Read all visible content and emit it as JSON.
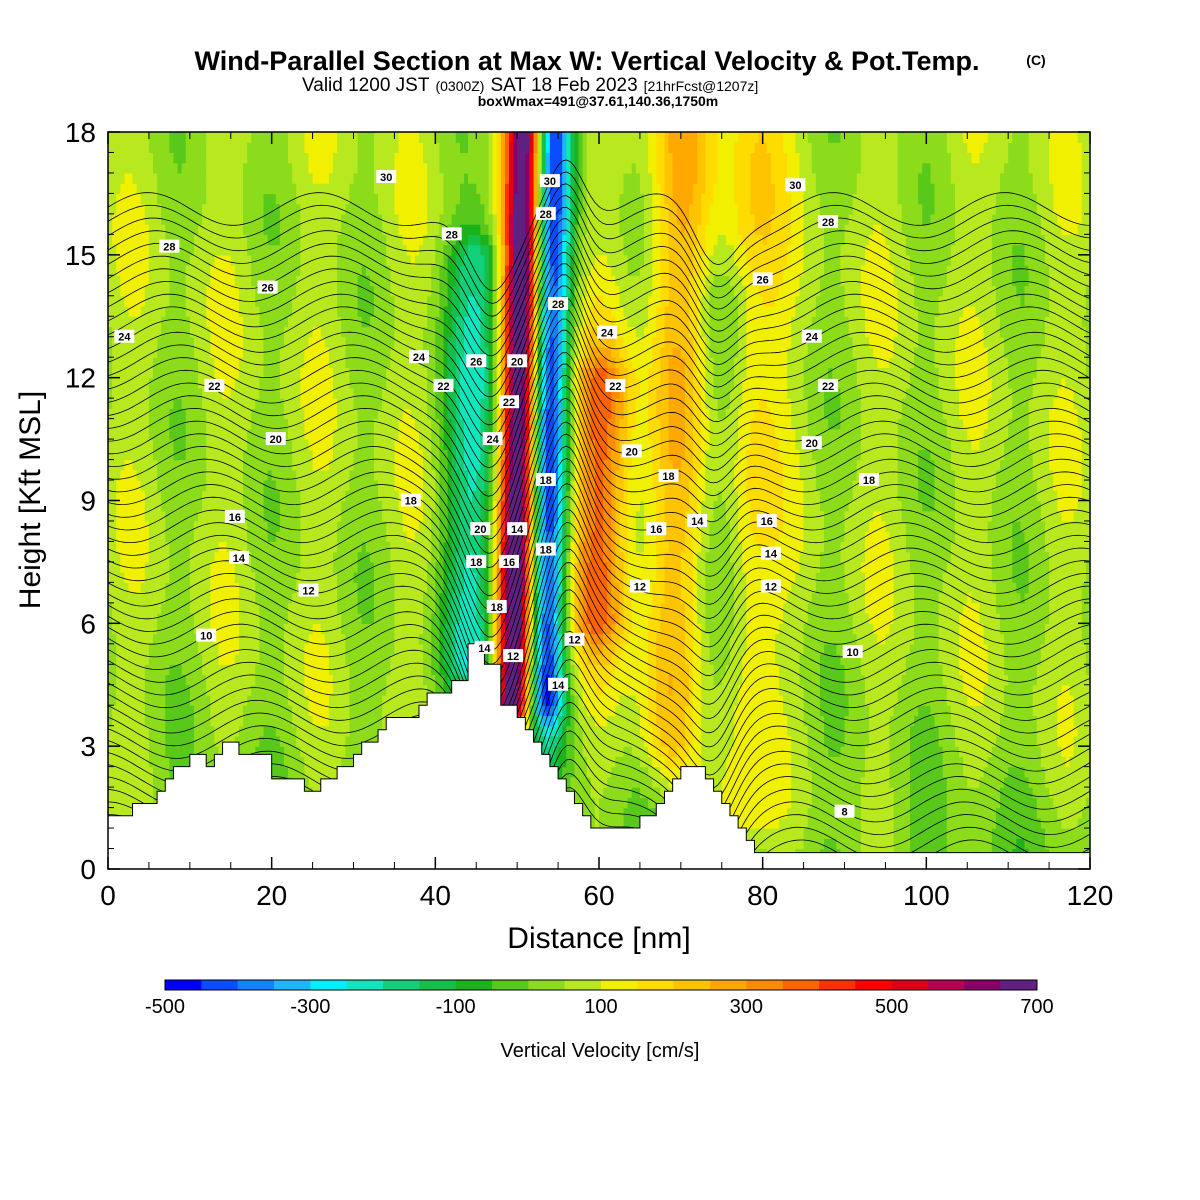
{
  "title": {
    "main": "Wind-Parallel Section at Max W: Vertical Velocity & Pot.Temp.",
    "copyright": "(C)",
    "valid_a": "Valid 1200 JST",
    "valid_b": "(0300Z)",
    "valid_c": "SAT 18 Feb 2023",
    "valid_d": "[21hrFcst@1207z]",
    "box": "boxWmax=491@37.61,140.36,1750m"
  },
  "chart_data": {
    "type": "heatmap",
    "xlabel": "Distance [nm]",
    "ylabel": "Height [Kft MSL]",
    "xlim": [
      0,
      120
    ],
    "ylim": [
      0,
      18
    ],
    "x_ticks": [
      0,
      20,
      40,
      60,
      80,
      100,
      120
    ],
    "y_ticks": [
      0,
      3,
      6,
      9,
      12,
      15,
      18
    ],
    "colorbar": {
      "label": "Vertical Velocity [cm/s]",
      "range": [
        -500,
        700
      ],
      "step": 50,
      "tick_labels": [
        "-500",
        "-300",
        "-100",
        "100",
        "300",
        "500",
        "700"
      ],
      "colors": [
        "#0000ff",
        "#0a4cff",
        "#1482ff",
        "#1cb7ff",
        "#00f0ff",
        "#10e6be",
        "#12d07a",
        "#14c04a",
        "#1cb21c",
        "#58c81a",
        "#8cdc1c",
        "#b8e81e",
        "#f0f000",
        "#ffdc00",
        "#ffc400",
        "#ffa800",
        "#ff8c00",
        "#ff6400",
        "#ff3000",
        "#ff0000",
        "#e00018",
        "#b80050",
        "#880068",
        "#602080"
      ]
    },
    "velocity_features": [
      {
        "x": 50,
        "ymin": 4.0,
        "ymax": 18,
        "w": 700,
        "note": "strong updraft"
      },
      {
        "x": 54,
        "ymin": 4.0,
        "ymax": 18,
        "w": -480,
        "note": "strong downdraft"
      },
      {
        "x": 45,
        "ymin": 5.0,
        "ymax": 15,
        "w": -260
      },
      {
        "x": 60,
        "ymin": 6.0,
        "ymax": 12,
        "w": 280
      },
      {
        "x": 69,
        "ymin": 3.0,
        "ymax": 18,
        "w": 180
      },
      {
        "x": 78,
        "ymin": 1.0,
        "ymax": 18,
        "w": 150
      },
      {
        "x": 75,
        "ymin": 3.0,
        "ymax": 14,
        "w": -100
      }
    ],
    "theta_contours": [
      8,
      10,
      12,
      14,
      16,
      18,
      20,
      22,
      24,
      26,
      28,
      30
    ],
    "theta_labels": [
      {
        "text": "30",
        "x": 34,
        "y": 16.9
      },
      {
        "text": "28",
        "x": 7.5,
        "y": 15.2
      },
      {
        "text": "26",
        "x": 19.5,
        "y": 14.2
      },
      {
        "text": "24",
        "x": 2,
        "y": 13.0
      },
      {
        "text": "22",
        "x": 13,
        "y": 11.8
      },
      {
        "text": "20",
        "x": 20.5,
        "y": 10.5
      },
      {
        "text": "18",
        "x": 37,
        "y": 9.0
      },
      {
        "text": "16",
        "x": 15.5,
        "y": 8.6
      },
      {
        "text": "14",
        "x": 16,
        "y": 7.6
      },
      {
        "text": "12",
        "x": 24.5,
        "y": 6.8
      },
      {
        "text": "10",
        "x": 12,
        "y": 5.7
      },
      {
        "text": "28",
        "x": 42,
        "y": 15.5
      },
      {
        "text": "24",
        "x": 38,
        "y": 12.5
      },
      {
        "text": "22",
        "x": 41,
        "y": 11.8
      },
      {
        "text": "26",
        "x": 45,
        "y": 12.4
      },
      {
        "text": "20",
        "x": 50,
        "y": 12.4
      },
      {
        "text": "22",
        "x": 49,
        "y": 11.4
      },
      {
        "text": "24",
        "x": 47,
        "y": 10.5
      },
      {
        "text": "20",
        "x": 45.5,
        "y": 8.3
      },
      {
        "text": "14",
        "x": 50,
        "y": 8.3
      },
      {
        "text": "18",
        "x": 45,
        "y": 7.5
      },
      {
        "text": "16",
        "x": 49,
        "y": 7.5
      },
      {
        "text": "18",
        "x": 47.5,
        "y": 6.4
      },
      {
        "text": "14",
        "x": 46,
        "y": 5.4
      },
      {
        "text": "12",
        "x": 49.5,
        "y": 5.2
      },
      {
        "text": "30",
        "x": 54,
        "y": 16.8
      },
      {
        "text": "28",
        "x": 53.5,
        "y": 16.0
      },
      {
        "text": "28",
        "x": 55,
        "y": 13.8
      },
      {
        "text": "18",
        "x": 53.5,
        "y": 9.5
      },
      {
        "text": "18",
        "x": 53.5,
        "y": 7.8
      },
      {
        "text": "14",
        "x": 55,
        "y": 4.5
      },
      {
        "text": "12",
        "x": 57,
        "y": 5.6
      },
      {
        "text": "24",
        "x": 61,
        "y": 13.1
      },
      {
        "text": "22",
        "x": 62,
        "y": 11.8
      },
      {
        "text": "20",
        "x": 64,
        "y": 10.2
      },
      {
        "text": "18",
        "x": 68.5,
        "y": 9.6
      },
      {
        "text": "16",
        "x": 67,
        "y": 8.3
      },
      {
        "text": "14",
        "x": 72,
        "y": 8.5
      },
      {
        "text": "12",
        "x": 65,
        "y": 6.9
      },
      {
        "text": "30",
        "x": 84,
        "y": 16.7
      },
      {
        "text": "28",
        "x": 88,
        "y": 15.8
      },
      {
        "text": "26",
        "x": 80,
        "y": 14.4
      },
      {
        "text": "24",
        "x": 86,
        "y": 13.0
      },
      {
        "text": "22",
        "x": 88,
        "y": 11.8
      },
      {
        "text": "20",
        "x": 86,
        "y": 10.4
      },
      {
        "text": "18",
        "x": 93,
        "y": 9.5
      },
      {
        "text": "16",
        "x": 80.5,
        "y": 8.5
      },
      {
        "text": "14",
        "x": 81,
        "y": 7.7
      },
      {
        "text": "12",
        "x": 81,
        "y": 6.9
      },
      {
        "text": "10",
        "x": 91,
        "y": 5.3
      },
      {
        "text": "8",
        "x": 90,
        "y": 1.4
      }
    ],
    "terrain": [
      [
        0,
        1.3
      ],
      [
        3,
        1.3
      ],
      [
        3,
        1.6
      ],
      [
        6,
        1.6
      ],
      [
        6,
        1.9
      ],
      [
        7,
        1.9
      ],
      [
        7,
        2.2
      ],
      [
        8,
        2.2
      ],
      [
        8,
        2.5
      ],
      [
        10,
        2.5
      ],
      [
        10,
        2.8
      ],
      [
        12,
        2.8
      ],
      [
        12,
        2.5
      ],
      [
        13,
        2.5
      ],
      [
        13,
        2.8
      ],
      [
        14,
        2.8
      ],
      [
        14,
        3.1
      ],
      [
        16,
        3.1
      ],
      [
        16,
        2.8
      ],
      [
        20,
        2.8
      ],
      [
        20,
        2.2
      ],
      [
        24,
        2.2
      ],
      [
        24,
        1.9
      ],
      [
        26,
        1.9
      ],
      [
        26,
        2.2
      ],
      [
        28,
        2.2
      ],
      [
        28,
        2.5
      ],
      [
        30,
        2.5
      ],
      [
        30,
        2.8
      ],
      [
        31,
        2.8
      ],
      [
        31,
        3.1
      ],
      [
        33,
        3.1
      ],
      [
        33,
        3.4
      ],
      [
        34,
        3.4
      ],
      [
        34,
        3.7
      ],
      [
        38,
        3.7
      ],
      [
        38,
        4.0
      ],
      [
        39,
        4.0
      ],
      [
        39,
        4.3
      ],
      [
        42,
        4.3
      ],
      [
        42,
        4.6
      ],
      [
        44,
        4.6
      ],
      [
        44,
        5.5
      ],
      [
        46,
        5.5
      ],
      [
        46,
        5.0
      ],
      [
        48,
        5.0
      ],
      [
        48,
        4.0
      ],
      [
        50,
        4.0
      ],
      [
        50,
        3.7
      ],
      [
        51,
        3.7
      ],
      [
        51,
        3.4
      ],
      [
        52,
        3.4
      ],
      [
        52,
        3.1
      ],
      [
        53,
        3.1
      ],
      [
        53,
        2.8
      ],
      [
        54,
        2.8
      ],
      [
        54,
        2.5
      ],
      [
        55,
        2.5
      ],
      [
        55,
        2.2
      ],
      [
        56,
        2.2
      ],
      [
        56,
        1.9
      ],
      [
        57,
        1.9
      ],
      [
        57,
        1.6
      ],
      [
        58,
        1.6
      ],
      [
        58,
        1.3
      ],
      [
        59,
        1.3
      ],
      [
        59,
        1.0
      ],
      [
        65,
        1.0
      ],
      [
        65,
        1.3
      ],
      [
        67,
        1.3
      ],
      [
        67,
        1.6
      ],
      [
        68,
        1.6
      ],
      [
        68,
        1.9
      ],
      [
        69,
        1.9
      ],
      [
        69,
        2.2
      ],
      [
        70,
        2.2
      ],
      [
        70,
        2.5
      ],
      [
        73,
        2.5
      ],
      [
        73,
        2.2
      ],
      [
        74,
        2.2
      ],
      [
        74,
        1.9
      ],
      [
        75,
        1.9
      ],
      [
        75,
        1.6
      ],
      [
        76,
        1.6
      ],
      [
        76,
        1.3
      ],
      [
        77,
        1.3
      ],
      [
        77,
        1.0
      ],
      [
        78,
        1.0
      ],
      [
        78,
        0.7
      ],
      [
        79,
        0.7
      ],
      [
        79,
        0.4
      ],
      [
        120,
        0.4
      ],
      [
        120,
        0
      ]
    ]
  }
}
